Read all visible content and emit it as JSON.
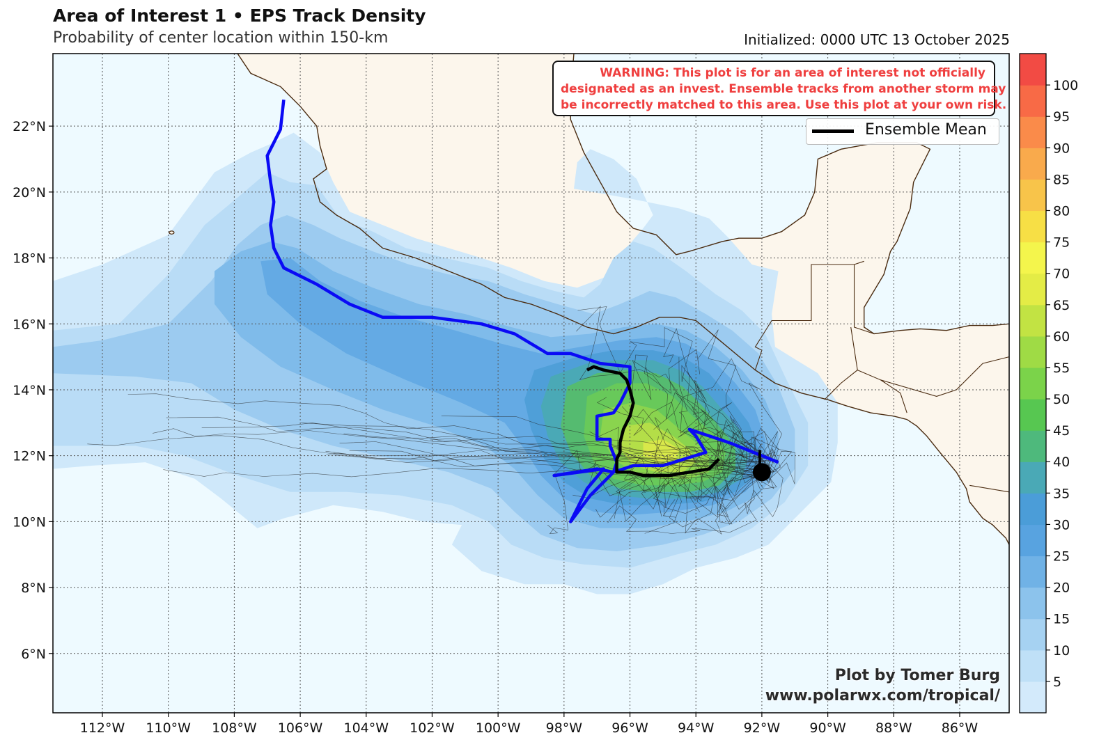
{
  "header": {
    "title": "Area of Interest 1 • EPS Track Density",
    "subtitle": "Probability of center location within 150-km",
    "initialized": "Initialized: 0000 UTC 13 October 2025"
  },
  "warning": {
    "lines": [
      "WARNING: This plot is for an area of interest not officially",
      "designated as an invest. Ensemble tracks from another storm may",
      "be incorrectly matched to this area. Use this plot at your own risk."
    ],
    "color": "#ef3f3f"
  },
  "legend": {
    "entry": "Ensemble Mean"
  },
  "credit": {
    "line1": "Plot by Tomer Burg",
    "line2": "www.polarwx.com/tropical/"
  },
  "map": {
    "lon_range": [
      -113.5,
      -84.5
    ],
    "lat_range": [
      4.2,
      24.2
    ],
    "lon_ticks": [
      "112°W",
      "110°W",
      "108°W",
      "106°W",
      "104°W",
      "102°W",
      "100°W",
      "98°W",
      "96°W",
      "94°W",
      "92°W",
      "90°W",
      "88°W",
      "86°W"
    ],
    "lat_ticks": [
      "6°N",
      "8°N",
      "10°N",
      "12°N",
      "14°N",
      "16°N",
      "18°N",
      "20°N",
      "22°N"
    ],
    "ocean_color": "#eefaff",
    "land_color": "#fcf6ec"
  },
  "colorbar": {
    "ticks": [
      "5",
      "10",
      "15",
      "20",
      "25",
      "30",
      "35",
      "40",
      "45",
      "50",
      "55",
      "60",
      "65",
      "70",
      "75",
      "80",
      "85",
      "90",
      "95",
      "100"
    ],
    "colors": [
      "#d3eafb",
      "#bfe0f7",
      "#a6d2f2",
      "#8cc3ec",
      "#70b2e6",
      "#58a3e0",
      "#4b9dd8",
      "#4aa9b6",
      "#4eb97c",
      "#57c751",
      "#7bd34a",
      "#9fdb45",
      "#c2e343",
      "#e4ec46",
      "#f4f54c",
      "#f7df45",
      "#f8c44a",
      "#f9aa4c",
      "#fa8b4a",
      "#f86a46",
      "#f24b44"
    ]
  },
  "density_colors": {
    "c5": "#cfe8fa",
    "c10": "#b9dcf6",
    "c15": "#9ccbf0",
    "c20": "#7fbbea",
    "c25": "#64aae4",
    "c30": "#4f9fd8",
    "c35": "#4aa9b6",
    "c40": "#55bb70",
    "c45": "#68c95a",
    "c50": "#8ad44e",
    "c55": "#b4de48",
    "c60": "#d8e84a"
  },
  "tracks": {
    "ensemble_mean_color": "#000000",
    "highlight_color": "#0a0af5",
    "ensemble_mean": [
      [
        -97.3,
        14.6
      ],
      [
        -97.1,
        14.7
      ],
      [
        -96.8,
        14.6
      ],
      [
        -96.3,
        14.5
      ],
      [
        -96.1,
        14.3
      ],
      [
        -96.0,
        14.0
      ],
      [
        -95.9,
        13.6
      ],
      [
        -96.0,
        13.2
      ],
      [
        -96.2,
        12.8
      ],
      [
        -96.3,
        12.4
      ],
      [
        -96.3,
        12.1
      ],
      [
        -96.4,
        11.9
      ],
      [
        -96.4,
        11.5
      ],
      [
        -96.0,
        11.5
      ],
      [
        -95.6,
        11.4
      ],
      [
        -94.8,
        11.4
      ],
      [
        -94.2,
        11.5
      ],
      [
        -93.6,
        11.6
      ],
      [
        -93.3,
        11.9
      ]
    ],
    "highlight": [
      [
        -106.5,
        22.8
      ],
      [
        -106.6,
        21.9
      ],
      [
        -107.0,
        21.1
      ],
      [
        -106.9,
        20.3
      ],
      [
        -106.8,
        19.7
      ],
      [
        -106.9,
        19.0
      ],
      [
        -106.8,
        18.3
      ],
      [
        -106.5,
        17.7
      ],
      [
        -105.5,
        17.2
      ],
      [
        -104.5,
        16.6
      ],
      [
        -103.5,
        16.2
      ],
      [
        -102.0,
        16.2
      ],
      [
        -100.5,
        16.0
      ],
      [
        -99.5,
        15.7
      ],
      [
        -98.5,
        15.1
      ],
      [
        -97.8,
        15.1
      ],
      [
        -97.5,
        15.0
      ],
      [
        -96.9,
        14.8
      ],
      [
        -96.0,
        14.7
      ],
      [
        -96.0,
        14.2
      ],
      [
        -96.3,
        13.6
      ],
      [
        -96.5,
        13.3
      ],
      [
        -97.0,
        13.2
      ],
      [
        -97.0,
        12.5
      ],
      [
        -96.6,
        12.5
      ],
      [
        -96.6,
        12.3
      ],
      [
        -96.4,
        11.8
      ],
      [
        -96.5,
        11.5
      ],
      [
        -96.8,
        11.2
      ],
      [
        -97.2,
        10.8
      ],
      [
        -97.8,
        10.0
      ],
      [
        -97.3,
        11.0
      ],
      [
        -96.8,
        11.6
      ],
      [
        -98.3,
        11.4
      ],
      [
        -97.0,
        11.6
      ],
      [
        -96.5,
        11.5
      ],
      [
        -95.9,
        11.7
      ],
      [
        -95.0,
        11.7
      ],
      [
        -93.7,
        12.1
      ],
      [
        -94.0,
        12.6
      ],
      [
        -94.2,
        12.8
      ],
      [
        -93.0,
        12.4
      ],
      [
        -91.5,
        11.8
      ]
    ],
    "storm_position": [
      -92.0,
      11.5
    ]
  }
}
